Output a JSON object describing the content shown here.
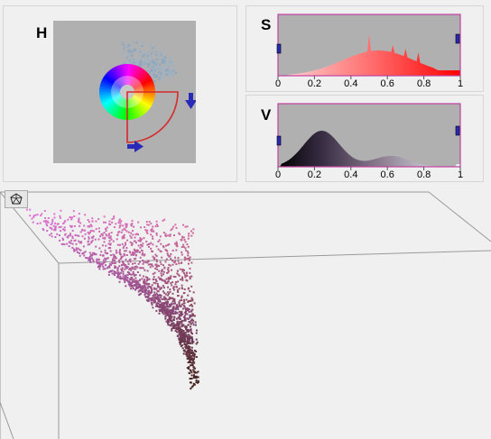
{
  "panels": {
    "hue": {
      "label": "H"
    },
    "saturation": {
      "label": "S",
      "ticks": [
        "0",
        "0.2",
        "0.4",
        "0.6",
        "0.8",
        "1"
      ]
    },
    "value": {
      "label": "V",
      "ticks": [
        "0",
        "0.2",
        "0.4",
        "0.6",
        "0.8",
        "1"
      ]
    }
  },
  "toolbar": {
    "rotate_tool_icon": "rotate-3d-icon"
  },
  "colors": {
    "background": "#f0f0f0",
    "plot_background": "#b0b0b0",
    "histogram_saturation": "#ff2020",
    "histogram_value": "#3b3242",
    "hist_border": "#c040a0",
    "handle": "#2020c0",
    "hue_selection": "#e02020",
    "scatter_pink": "#e070d8",
    "scatter_dark": "#301820"
  }
}
